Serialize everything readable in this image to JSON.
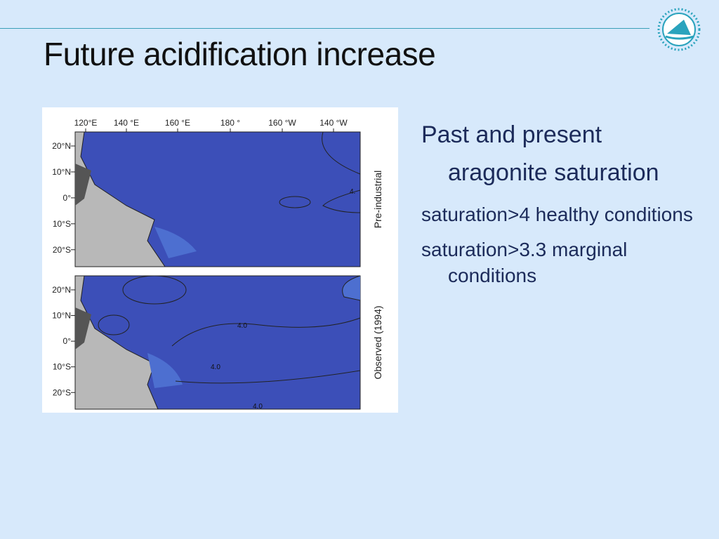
{
  "header": {
    "title": "Future acidification increase"
  },
  "figure": {
    "x_labels": [
      "120°E",
      "140 °E",
      "160 °E",
      "180 °",
      "160 °W",
      "140 °W"
    ],
    "y_labels": [
      "20°N",
      "10°N",
      "0°",
      "10°S",
      "20°S"
    ],
    "panels": [
      {
        "label": "Pre-industrial",
        "contour_labels": [
          "4."
        ]
      },
      {
        "label": "Observed (1994)",
        "contour_labels": [
          "4.0",
          "4.0",
          "4.0"
        ]
      }
    ]
  },
  "bullets": [
    {
      "text": "Past and present aragonite saturation"
    },
    {
      "text": "saturation>4 healthy conditions"
    },
    {
      "text": "saturation>3.3 marginal conditions"
    }
  ]
}
